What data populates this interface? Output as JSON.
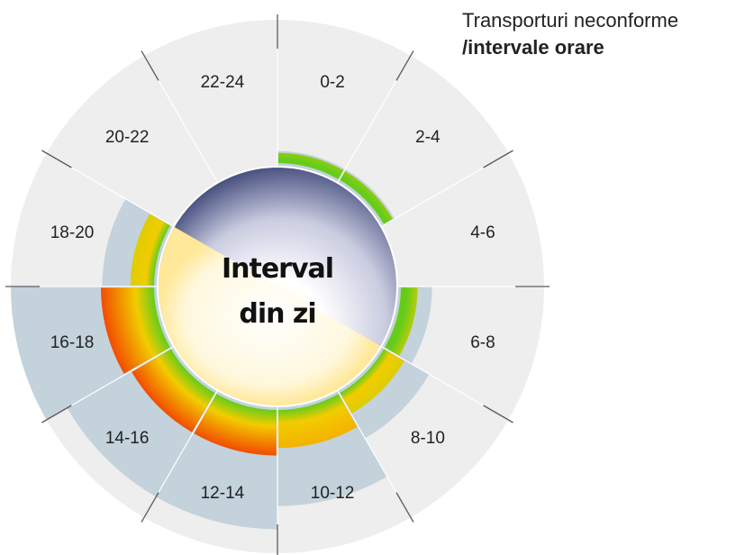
{
  "title": {
    "line1": "Transporturi neconforme",
    "line2": "/intervale orare"
  },
  "chart_data": {
    "type": "radial-bar",
    "center_label": [
      "Interval",
      "din zi"
    ],
    "categories": [
      "0-2",
      "2-4",
      "4-6",
      "6-8",
      "8-10",
      "10-12",
      "12-14",
      "14-16",
      "16-18",
      "18-20",
      "20-22",
      "22-24"
    ],
    "values": [
      1,
      1,
      0,
      2,
      3,
      5,
      6,
      6,
      7,
      3,
      0,
      0
    ],
    "max_value": 7,
    "colors": {
      "outer_background": "#eeeeee",
      "bar_background": "#c3d2db",
      "bar_low": "#66cc1a",
      "bar_mid": "#f2cc00",
      "bar_high": "#f24c00",
      "center_dark": "#4b5482",
      "center_light": "#ffffff",
      "center_warm": "#ffe58a"
    }
  }
}
